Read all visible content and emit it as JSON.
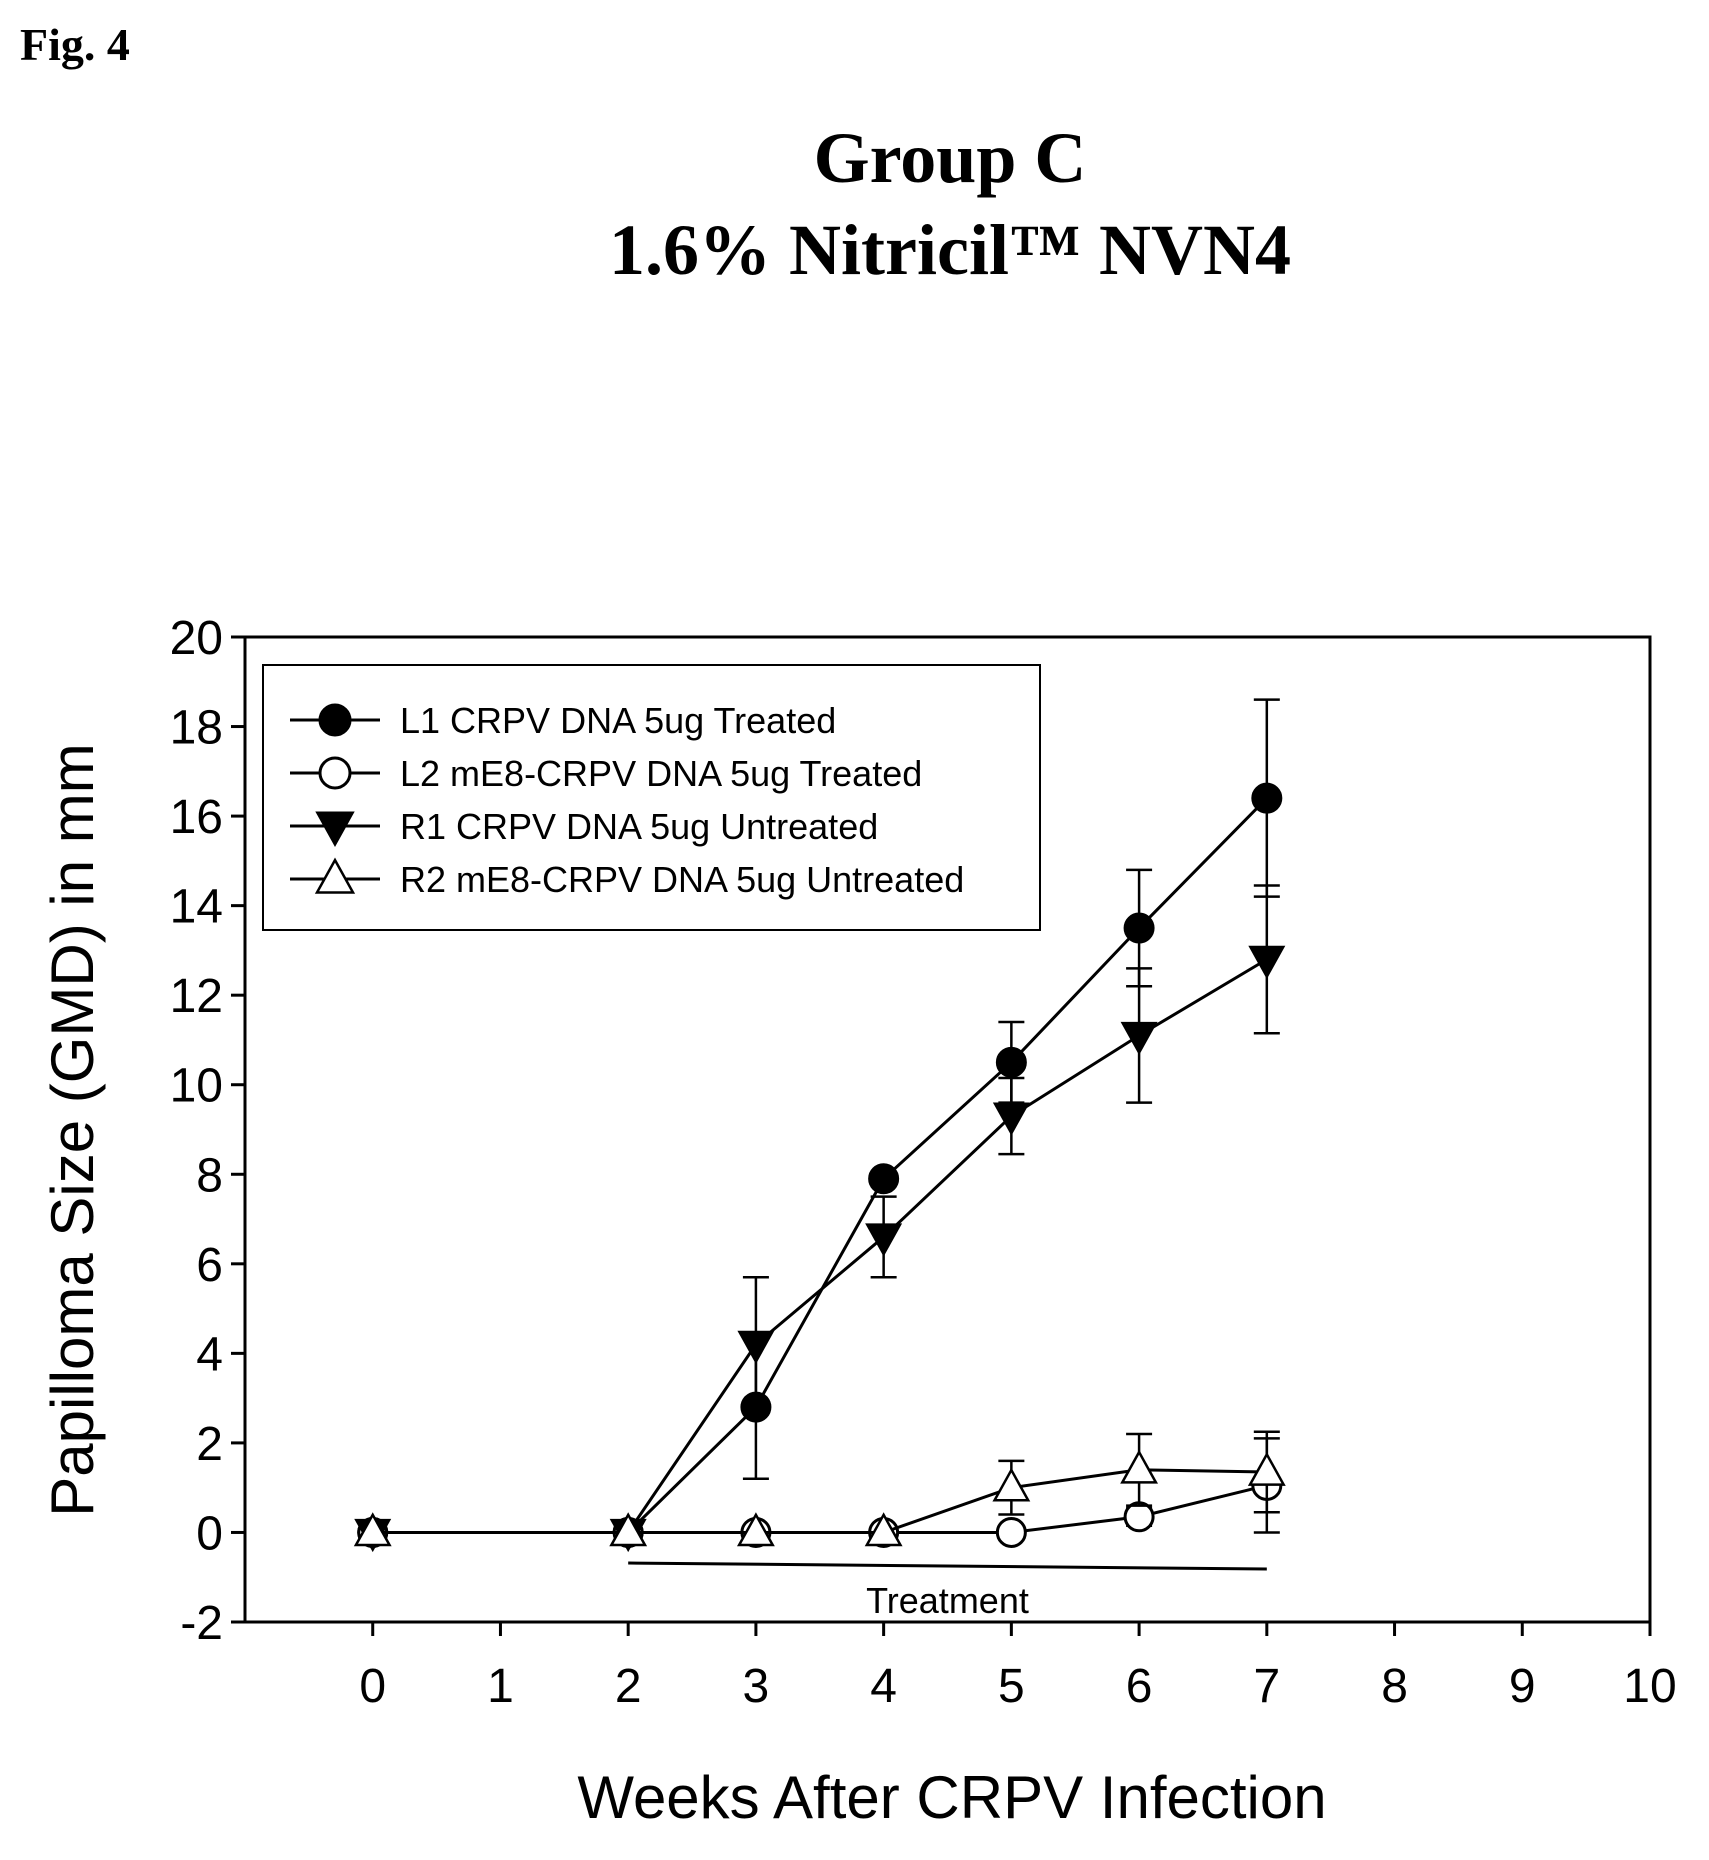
{
  "figure_label": "Fig. 4",
  "chart_data": {
    "type": "line",
    "title": "Group C",
    "subtitle": "1.6% Nitricil™ NVN4",
    "xlabel": "Weeks After CRPV Infection",
    "ylabel": "Papilloma Size (GMD) in mm",
    "xlim": [
      -1,
      10
    ],
    "ylim": [
      -2,
      20
    ],
    "x_ticks": [
      "0",
      "1",
      "2",
      "3",
      "4",
      "5",
      "6",
      "7",
      "8",
      "9",
      "10"
    ],
    "y_ticks": [
      "-2",
      "0",
      "2",
      "4",
      "6",
      "8",
      "10",
      "12",
      "14",
      "16",
      "18",
      "20"
    ],
    "legend_position": "top-left",
    "grid": false,
    "series": [
      {
        "name": "L1 CRPV DNA 5ug Treated",
        "marker": "filled-circle",
        "x": [
          0,
          2,
          3,
          4,
          5,
          6,
          7
        ],
        "values": [
          0,
          0,
          2.8,
          7.9,
          10.5,
          13.5,
          16.4
        ],
        "error": [
          0,
          0,
          1.6,
          0,
          0.9,
          1.3,
          2.2
        ]
      },
      {
        "name": "L2 mE8-CRPV DNA 5ug Treated",
        "marker": "open-circle",
        "x": [
          0,
          2,
          3,
          4,
          5,
          6,
          7
        ],
        "values": [
          0,
          0,
          0,
          0,
          0,
          0.35,
          1.05
        ],
        "error": [
          0,
          0,
          0,
          0,
          0,
          0.2,
          1.05
        ]
      },
      {
        "name": "R1 CRPV DNA 5ug Untreated",
        "marker": "filled-triangle-down",
        "x": [
          0,
          2,
          3,
          4,
          5,
          6,
          7
        ],
        "values": [
          0,
          0,
          4.2,
          6.6,
          9.3,
          11.1,
          12.8
        ],
        "error": [
          0,
          0,
          1.5,
          0.9,
          0.85,
          1.5,
          1.65
        ]
      },
      {
        "name": "R2 mE8-CRPV DNA 5ug Untreated",
        "marker": "open-triangle-up",
        "x": [
          0,
          2,
          3,
          4,
          5,
          6,
          7
        ],
        "values": [
          0,
          0,
          0,
          0,
          1.0,
          1.4,
          1.35
        ],
        "error": [
          0,
          0,
          0,
          0,
          0.6,
          0.8,
          0.9
        ]
      }
    ],
    "annotations": [
      {
        "text": "Treatment",
        "x_start": 2,
        "x_end": 7,
        "y": -0.75
      }
    ]
  }
}
